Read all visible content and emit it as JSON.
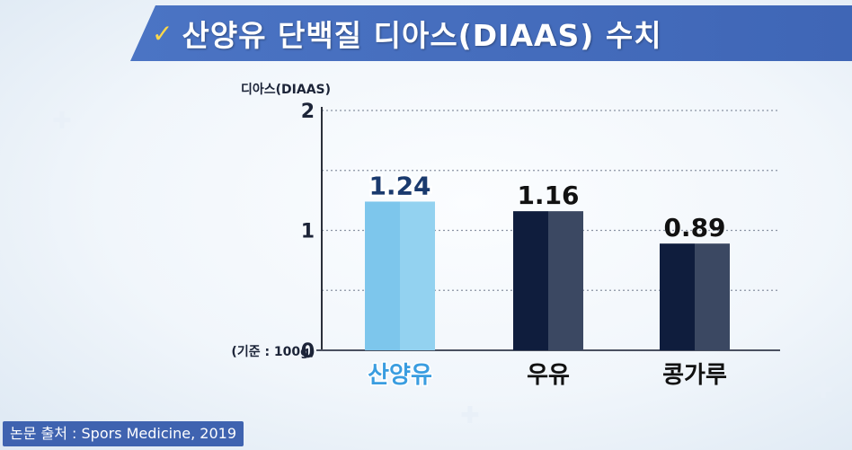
{
  "header": {
    "check_icon": "check-icon",
    "title": "산양유 단백질 디아스(DIAAS) 수치"
  },
  "source": {
    "text": "논문 출처 : Spors Medicine, 2019"
  },
  "chart_data": {
    "type": "bar",
    "ylabel": "디아스(DIAAS)",
    "ylim": [
      0,
      2
    ],
    "yticks": [
      "0",
      "1",
      "2"
    ],
    "grid": true,
    "base_note": "(기준 : 100g)",
    "categories": [
      "산양유",
      "우유",
      "콩가루"
    ],
    "values": [
      1.24,
      1.16,
      0.89
    ],
    "value_labels": [
      "1.24",
      "1.16",
      "0.89"
    ],
    "colors": {
      "highlight_bar": "#7dc6ec",
      "highlight_bar_light": "#93d2f0",
      "dark_bar": "#0f1d3d",
      "dark_bar_light": "#3b4862",
      "highlight_text": "#1a3a6e",
      "highlight_text_outline": "#ffffff",
      "highlight_category": "#3a9de0"
    }
  }
}
